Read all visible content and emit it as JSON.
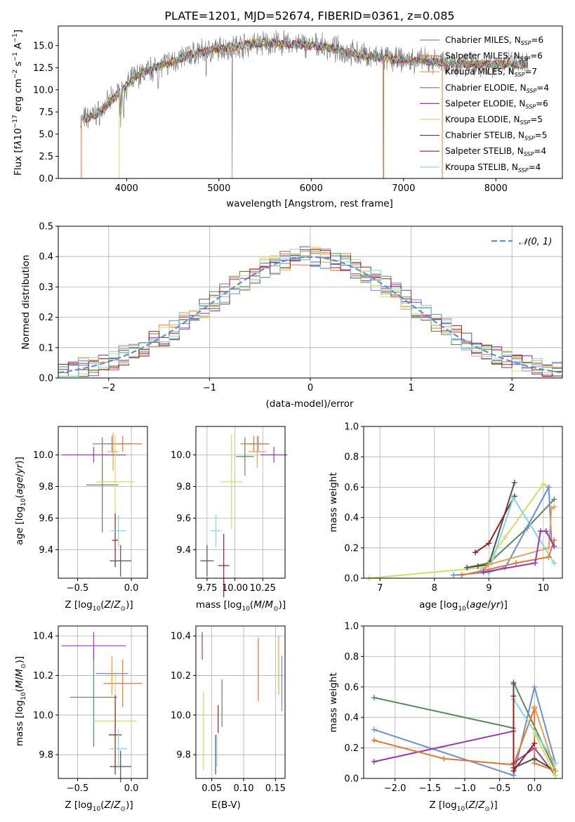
{
  "colors": {
    "Chabrier MILES": "#6a8fd8",
    "Salpeter MILES": "#e8732b",
    "Kroupa MILES": "#e8a04a",
    "Chabrier ELODIE": "#5a8a5a",
    "Salpeter ELODIE": "#9a35b5",
    "Kroupa ELODIE": "#cfe05a",
    "Chabrier STELIB": "#505050",
    "Salpeter STELIB": "#9a1d1d",
    "Kroupa STELIB": "#7dd8e0"
  },
  "chart_data": [
    {
      "id": "spectrum",
      "type": "line",
      "title": "PLATE=1201, MJD=52674, FIBERID=0361, z=0.085",
      "xlabel": "wavelength [Angstrom, rest frame]",
      "ylabel": "Flux [f$_\\lambda$10$^{-17}$ erg cm$^{-2}$ s$^{-1}$ A$^{-1}$]",
      "xlim": [
        3260,
        8720
      ],
      "ylim": [
        0,
        17.2
      ],
      "xticks": [
        4000,
        5000,
        6000,
        7000,
        8000
      ],
      "yticks": [
        0.0,
        2.5,
        5.0,
        7.5,
        10.0,
        12.5,
        15.0
      ],
      "data_continuum": {
        "x": [
          3500,
          3700,
          3900,
          4100,
          4300,
          4500,
          4700,
          4900,
          5100,
          5300,
          5500,
          5700,
          5900,
          6100,
          6300,
          6500,
          6700,
          6900,
          7100,
          7300,
          7500,
          7700,
          7900,
          8100,
          8300
        ],
        "y": [
          6.5,
          7.4,
          9.5,
          11.5,
          12.5,
          13.2,
          14.0,
          14.4,
          14.8,
          15.1,
          15.3,
          15.2,
          15.1,
          14.9,
          14.5,
          14.0,
          13.7,
          13.4,
          13.3,
          13.2,
          13.0,
          12.9,
          12.9,
          12.9,
          12.8
        ]
      },
      "legend": [
        {
          "name": "Chabrier MILES",
          "nssp": "6"
        },
        {
          "name": "Salpeter MILES",
          "nssp": "6"
        },
        {
          "name": "Kroupa MILES",
          "nssp": "7"
        },
        {
          "name": "Chabrier ELODIE",
          "nssp": "4"
        },
        {
          "name": "Salpeter ELODIE",
          "nssp": "6"
        },
        {
          "name": "Kroupa ELODIE",
          "nssp": "5"
        },
        {
          "name": "Chabrier STELIB",
          "nssp": "5"
        },
        {
          "name": "Salpeter STELIB",
          "nssp": "4"
        },
        {
          "name": "Kroupa STELIB",
          "nssp": "4"
        }
      ]
    },
    {
      "id": "residuals",
      "type": "line",
      "xlabel": "(data-model)/error",
      "ylabel": "Normed distribution",
      "xlim": [
        -2.5,
        2.5
      ],
      "ylim": [
        0,
        0.5
      ],
      "xticks": [
        -2,
        -1,
        0,
        1,
        2
      ],
      "yticks": [
        0.0,
        0.1,
        0.2,
        0.3,
        0.4,
        0.5
      ],
      "reference_curve": "$\\mathcal{N}(0,1)$",
      "bin_width": 0.1
    },
    {
      "id": "age_vs_Z",
      "type": "scatter",
      "xlabel": "Z [log$_{10}$(Z/Z$_\\odot$)]",
      "ylabel": "age  [log$_{10}$(age/yr)]",
      "xlim": [
        -0.68,
        0.15
      ],
      "ylim": [
        9.22,
        10.18
      ],
      "xticks": [
        -0.5,
        0.0
      ],
      "yticks": [
        9.4,
        9.6,
        9.8,
        10.0
      ],
      "points": [
        {
          "model": "Chabrier MILES",
          "x": -0.18,
          "xerr": 0.18,
          "y": 10.07,
          "yerr": 0.05
        },
        {
          "model": "Salpeter MILES",
          "x": -0.08,
          "xerr": 0.18,
          "y": 10.07,
          "yerr": 0.05
        },
        {
          "model": "Kroupa MILES",
          "x": -0.17,
          "xerr": 0.05,
          "y": 10.02,
          "yerr": 0.12
        },
        {
          "model": "Chabrier ELODIE",
          "x": -0.27,
          "xerr": 0.15,
          "y": 9.81,
          "yerr": 0.3
        },
        {
          "model": "Salpeter ELODIE",
          "x": -0.35,
          "xerr": 0.3,
          "y": 10.0,
          "yerr": 0.05
        },
        {
          "model": "Kroupa ELODIE",
          "x": -0.15,
          "xerr": 0.18,
          "y": 9.83,
          "yerr": 0.3
        },
        {
          "model": "Chabrier STELIB",
          "x": -0.1,
          "xerr": 0.1,
          "y": 9.33,
          "yerr": 0.1
        },
        {
          "model": "Salpeter STELIB",
          "x": -0.15,
          "xerr": 0.03,
          "y": 9.46,
          "yerr": 0.17
        },
        {
          "model": "Kroupa STELIB",
          "x": -0.12,
          "xerr": 0.07,
          "y": 9.52,
          "yerr": 0.1
        }
      ]
    },
    {
      "id": "age_vs_mass",
      "type": "scatter",
      "xlabel": "mass [log$_{10}$(M/M$_\\odot$)]",
      "xlim": [
        9.65,
        10.45
      ],
      "ylim": [
        9.22,
        10.18
      ],
      "xticks": [
        9.75,
        10.0,
        10.25
      ],
      "yticks": [
        9.4,
        9.6,
        9.8,
        10.0
      ],
      "points": [
        {
          "model": "Chabrier MILES",
          "x": 10.21,
          "xerr": 0.1,
          "y": 10.07,
          "yerr": 0.05
        },
        {
          "model": "Salpeter MILES",
          "x": 10.17,
          "xerr": 0.12,
          "y": 10.07,
          "yerr": 0.05
        },
        {
          "model": "Kroupa MILES",
          "x": 10.2,
          "xerr": 0.08,
          "y": 10.02,
          "yerr": 0.1
        },
        {
          "model": "Chabrier ELODIE",
          "x": 10.09,
          "xerr": 0.08,
          "y": 9.99,
          "yerr": 0.12
        },
        {
          "model": "Salpeter ELODIE",
          "x": 10.35,
          "xerr": 0.12,
          "y": 10.0,
          "yerr": 0.05
        },
        {
          "model": "Kroupa ELODIE",
          "x": 9.97,
          "xerr": 0.1,
          "y": 9.83,
          "yerr": 0.3
        },
        {
          "model": "Chabrier STELIB",
          "x": 9.75,
          "xerr": 0.06,
          "y": 9.33,
          "yerr": 0.1
        },
        {
          "model": "Salpeter STELIB",
          "x": 9.9,
          "xerr": 0.05,
          "y": 9.3,
          "yerr": 0.2
        },
        {
          "model": "Kroupa STELIB",
          "x": 9.83,
          "xerr": 0.05,
          "y": 9.52,
          "yerr": 0.1
        }
      ]
    },
    {
      "id": "weight_vs_age",
      "type": "line",
      "xlabel": "age  [log$_{10}$(age/yr)]",
      "ylabel": "mass weight",
      "xlim": [
        6.7,
        10.35
      ],
      "ylim": [
        0,
        1.0
      ],
      "xticks": [
        7,
        8,
        9,
        10
      ],
      "yticks": [
        0.0,
        0.2,
        0.4,
        0.6,
        0.8,
        1.0
      ],
      "series": [
        {
          "model": "Kroupa ELODIE",
          "x": [
            6.8,
            8.9,
            9.3,
            10.0,
            10.1
          ],
          "y": [
            0.0,
            0.07,
            0.27,
            0.62,
            0.6
          ]
        },
        {
          "model": "Chabrier ELODIE",
          "x": [
            8.6,
            9.0,
            9.7,
            10.2
          ],
          "y": [
            0.07,
            0.1,
            0.33,
            0.52
          ]
        },
        {
          "model": "Chabrier STELIB",
          "x": [
            8.6,
            8.8,
            9.0,
            9.47
          ],
          "y": [
            0.07,
            0.08,
            0.09,
            0.63
          ]
        },
        {
          "model": "Salpeter STELIB",
          "x": [
            8.75,
            9.0,
            9.47
          ],
          "y": [
            0.17,
            0.23,
            0.54
          ]
        },
        {
          "model": "Kroupa STELIB",
          "x": [
            8.85,
            9.05,
            9.45,
            10.2
          ],
          "y": [
            0.05,
            0.1,
            0.53,
            0.1
          ]
        },
        {
          "model": "Chabrier MILES",
          "x": [
            8.35,
            9.0,
            9.3,
            10.1,
            10.15
          ],
          "y": [
            0.02,
            0.04,
            0.07,
            0.6,
            0.25
          ]
        },
        {
          "model": "Salpeter MILES",
          "x": [
            8.5,
            8.9,
            9.5,
            10.1,
            10.2
          ],
          "y": [
            0.02,
            0.05,
            0.1,
            0.14,
            0.25
          ]
        },
        {
          "model": "Kroupa MILES",
          "x": [
            8.9,
            9.0,
            10.1,
            10.15,
            10.2
          ],
          "y": [
            0.05,
            0.09,
            0.2,
            0.46,
            0.47
          ]
        },
        {
          "model": "Salpeter ELODIE",
          "x": [
            8.9,
            9.85,
            9.95,
            10.05,
            10.2
          ],
          "y": [
            0.04,
            0.1,
            0.31,
            0.31,
            0.21
          ]
        }
      ]
    },
    {
      "id": "mass_vs_Z",
      "type": "scatter",
      "xlabel": "Z [log$_{10}$(Z/Z$_\\odot$)]",
      "ylabel": "mass [log$_{10}$(M/M$_\\odot$)]",
      "xlim": [
        -0.68,
        0.15
      ],
      "ylim": [
        9.68,
        10.45
      ],
      "xticks": [
        -0.5,
        0.0
      ],
      "yticks": [
        9.8,
        10.0,
        10.2,
        10.4
      ],
      "points": [
        {
          "model": "Chabrier MILES",
          "x": -0.18,
          "xerr": 0.15,
          "y": 10.21,
          "yerr": 0.08
        },
        {
          "model": "Salpeter MILES",
          "x": -0.08,
          "xerr": 0.18,
          "y": 10.16,
          "yerr": 0.12
        },
        {
          "model": "Kroupa MILES",
          "x": -0.18,
          "xerr": 0.06,
          "y": 10.2,
          "yerr": 0.1
        },
        {
          "model": "Chabrier ELODIE",
          "x": -0.35,
          "xerr": 0.22,
          "y": 10.09,
          "yerr": 0.25
        },
        {
          "model": "Salpeter ELODIE",
          "x": -0.35,
          "xerr": 0.3,
          "y": 10.35,
          "yerr": 0.07
        },
        {
          "model": "Kroupa ELODIE",
          "x": -0.15,
          "xerr": 0.2,
          "y": 9.97,
          "yerr": 0.25
        },
        {
          "model": "Chabrier STELIB",
          "x": -0.1,
          "xerr": 0.1,
          "y": 9.74,
          "yerr": 0.08
        },
        {
          "model": "Salpeter STELIB",
          "x": -0.15,
          "xerr": 0.06,
          "y": 9.9,
          "yerr": 0.2
        },
        {
          "model": "Kroupa STELIB",
          "x": -0.12,
          "xerr": 0.08,
          "y": 9.83,
          "yerr": 0.1
        }
      ]
    },
    {
      "id": "mass_vs_ebv",
      "type": "scatter",
      "xlabel": "E(B-V)",
      "xlim": [
        0.025,
        0.165
      ],
      "ylim": [
        9.68,
        10.45
      ],
      "xticks": [
        0.05,
        0.1,
        0.15
      ],
      "yticks": [
        9.8,
        10.0,
        10.2,
        10.4
      ],
      "points": [
        {
          "model": "Chabrier MILES",
          "x": 0.16,
          "y": 10.16,
          "yerr": 0.14
        },
        {
          "model": "Salpeter MILES",
          "x": 0.123,
          "y": 10.23,
          "yerr": 0.16
        },
        {
          "model": "Kroupa MILES",
          "x": 0.155,
          "y": 10.25,
          "yerr": 0.15
        },
        {
          "model": "Chabrier ELODIE",
          "x": 0.066,
          "y": 10.06,
          "yerr": 0.12
        },
        {
          "model": "Salpeter ELODIE",
          "x": 0.035,
          "y": 10.35,
          "yerr": 0.07
        },
        {
          "model": "Kroupa ELODIE",
          "x": 0.037,
          "y": 9.92,
          "yerr": 0.2
        },
        {
          "model": "Chabrier STELIB",
          "x": 0.056,
          "y": 9.8,
          "yerr": 0.1
        },
        {
          "model": "Salpeter STELIB",
          "x": 0.06,
          "y": 9.98,
          "yerr": 0.07
        },
        {
          "model": "Kroupa STELIB",
          "x": 0.058,
          "y": 9.82,
          "yerr": 0.08
        }
      ]
    },
    {
      "id": "weight_vs_Z",
      "type": "line",
      "xlabel": "Z [log$_{10}$(Z/Z$_\\odot$)]",
      "ylabel": "mass weight",
      "xlim": [
        -2.45,
        0.4
      ],
      "ylim": [
        0,
        1.0
      ],
      "xticks": [
        -2.0,
        -1.5,
        -1.0,
        -0.5,
        0.0
      ],
      "yticks": [
        0.0,
        0.2,
        0.4,
        0.6,
        0.8,
        1.0
      ],
      "series": [
        {
          "model": "Chabrier ELODIE",
          "x": [
            -2.3,
            -0.3,
            -0.3,
            0.3
          ],
          "y": [
            0.53,
            0.33,
            0.63,
            0.05
          ]
        },
        {
          "model": "Chabrier MILES",
          "x": [
            -2.3,
            -0.3,
            0.0,
            0.3
          ],
          "y": [
            0.32,
            0.02,
            0.6,
            0.1
          ]
        },
        {
          "model": "Salpeter ELODIE",
          "x": [
            -2.3,
            -0.3,
            -0.3,
            0.0,
            0.3
          ],
          "y": [
            0.11,
            0.31,
            0.1,
            0.2,
            0.02
          ]
        },
        {
          "model": "Salpeter MILES",
          "x": [
            -2.3,
            -1.3,
            -0.3,
            0.0,
            0.0,
            0.3
          ],
          "y": [
            0.25,
            0.13,
            0.09,
            0.46,
            0.1,
            0.05
          ]
        },
        {
          "model": "Kroupa STELIB",
          "x": [
            -0.3,
            0.3
          ],
          "y": [
            0.52,
            0.1
          ]
        },
        {
          "model": "Chabrier STELIB",
          "x": [
            -0.3,
            -0.3,
            0.0,
            0.3
          ],
          "y": [
            0.62,
            0.07,
            0.13,
            0.05
          ]
        },
        {
          "model": "Salpeter STELIB",
          "x": [
            -0.3,
            -0.3,
            0.0
          ],
          "y": [
            0.54,
            0.05,
            0.23
          ]
        },
        {
          "model": "Kroupa MILES",
          "x": [
            0.0,
            0.3
          ],
          "y": [
            0.47,
            0.05
          ]
        },
        {
          "model": "Kroupa ELODIE",
          "x": [
            0.0,
            0.3
          ],
          "y": [
            0.3,
            0.02
          ]
        }
      ]
    }
  ]
}
